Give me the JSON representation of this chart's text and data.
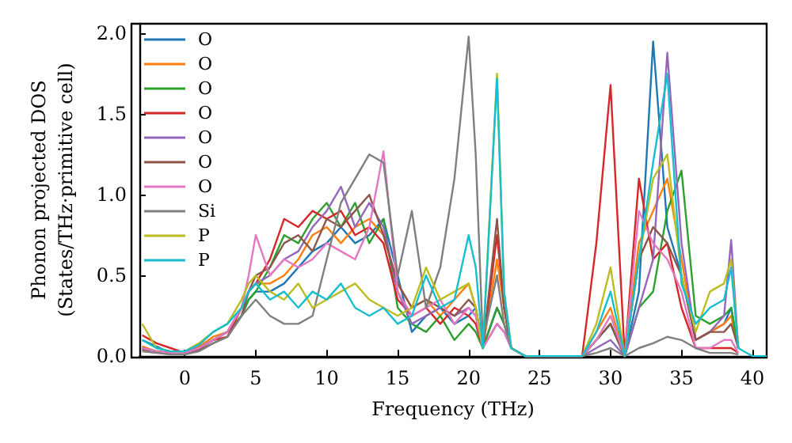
{
  "chart_data": {
    "type": "line",
    "xlabel": "Frequency (THz)",
    "ylabel": "Phonon projected DOS\n(States/THz·primitive cell)",
    "x": [
      -3,
      -2,
      -1,
      0,
      1,
      2,
      3,
      4,
      4.5,
      5,
      6,
      7,
      8,
      9,
      10,
      11,
      12,
      13,
      14,
      15,
      16,
      17,
      18,
      19,
      20,
      20.5,
      21,
      22,
      22.5,
      23,
      24,
      28,
      29,
      30,
      31,
      32,
      33,
      34,
      35,
      36,
      37,
      38,
      38.5,
      39
    ],
    "xlim": [
      -3.2,
      41
    ],
    "xticks": [
      0,
      5,
      10,
      15,
      20,
      25,
      30,
      35,
      40
    ],
    "ylim": [
      0,
      2.06
    ],
    "yticks": [
      {
        "value": 0,
        "label": "0.0"
      },
      {
        "value": 0.5,
        "label": "0.5"
      },
      {
        "value": 1,
        "label": "1.0"
      },
      {
        "value": 1.5,
        "label": "1.5"
      },
      {
        "value": 2,
        "label": "2.0"
      }
    ],
    "grid": false,
    "legend": "top left",
    "series": [
      {
        "name": "O",
        "color": "#1f77b4",
        "values": [
          0.1,
          0.06,
          0.02,
          0.02,
          0.05,
          0.1,
          0.15,
          0.25,
          0.35,
          0.4,
          0.4,
          0.45,
          0.55,
          0.65,
          0.7,
          0.8,
          0.7,
          0.75,
          0.85,
          0.5,
          0.15,
          0.25,
          0.3,
          0.2,
          0.25,
          0.3,
          0.05,
          0.3,
          0.2,
          0.05,
          0,
          0,
          0.1,
          0.2,
          0,
          0.4,
          1.95,
          0.8,
          0.5,
          0.1,
          0.15,
          0.2,
          0.3,
          0.05
        ]
      },
      {
        "name": "O",
        "color": "#ff7f0e",
        "values": [
          0.06,
          0.03,
          0.02,
          0.02,
          0.06,
          0.12,
          0.15,
          0.3,
          0.4,
          0.45,
          0.45,
          0.5,
          0.6,
          0.75,
          0.8,
          0.7,
          0.8,
          0.85,
          0.75,
          0.45,
          0.3,
          0.35,
          0.25,
          0.35,
          0.45,
          0.3,
          0.05,
          0.6,
          0.3,
          0.05,
          0,
          0,
          0.15,
          0.3,
          0,
          0.7,
          0.9,
          1.1,
          0.6,
          0.1,
          0.15,
          0.2,
          0.25,
          0.05
        ]
      },
      {
        "name": "O",
        "color": "#2ca02c",
        "values": [
          0.05,
          0.03,
          0.02,
          0.02,
          0.05,
          0.1,
          0.15,
          0.25,
          0.35,
          0.4,
          0.55,
          0.75,
          0.7,
          0.85,
          0.95,
          0.8,
          0.95,
          0.7,
          0.85,
          0.3,
          0.2,
          0.15,
          0.25,
          0.1,
          0.2,
          0.15,
          0.05,
          0.3,
          0.2,
          0.05,
          0,
          0,
          0.1,
          0.2,
          0,
          0.3,
          0.4,
          0.9,
          1.15,
          0.25,
          0.2,
          0.25,
          0.3,
          0.05
        ]
      },
      {
        "name": "O",
        "color": "#d62728",
        "values": [
          0.13,
          0.08,
          0.05,
          0.02,
          0.05,
          0.1,
          0.12,
          0.3,
          0.4,
          0.45,
          0.6,
          0.85,
          0.8,
          0.9,
          0.85,
          0.9,
          0.75,
          0.8,
          0.7,
          0.35,
          0.25,
          0.3,
          0.2,
          0.3,
          0.25,
          0.2,
          0.05,
          0.75,
          0.3,
          0.05,
          0,
          0,
          0.7,
          1.68,
          0,
          1.1,
          0.6,
          0.7,
          0.3,
          0.05,
          0.05,
          0.05,
          0.05,
          0.02
        ]
      },
      {
        "name": "O",
        "color": "#9467bd",
        "values": [
          0.05,
          0.03,
          0.02,
          0.02,
          0.05,
          0.1,
          0.15,
          0.3,
          0.4,
          0.45,
          0.5,
          0.6,
          0.65,
          0.8,
          0.9,
          1.05,
          0.8,
          0.95,
          0.8,
          0.4,
          0.2,
          0.25,
          0.3,
          0.25,
          0.3,
          0.25,
          0.05,
          0.2,
          0.15,
          0.05,
          0,
          0,
          0.05,
          0.1,
          0,
          0.3,
          0.6,
          1.88,
          0.7,
          0.1,
          0.15,
          0.25,
          0.72,
          0.05
        ]
      },
      {
        "name": "O",
        "color": "#8c564b",
        "values": [
          0.04,
          0.03,
          0.02,
          0.02,
          0.04,
          0.08,
          0.12,
          0.25,
          0.4,
          0.5,
          0.55,
          0.7,
          0.75,
          0.65,
          0.85,
          0.8,
          0.9,
          1.0,
          0.75,
          0.45,
          0.3,
          0.35,
          0.3,
          0.25,
          0.35,
          0.3,
          0.05,
          0.85,
          0.3,
          0.05,
          0,
          0,
          0.1,
          0.2,
          0,
          0.6,
          0.8,
          0.7,
          0.5,
          0.1,
          0.15,
          0.15,
          0.2,
          0.05
        ]
      },
      {
        "name": "O",
        "color": "#e377c2",
        "values": [
          0.05,
          0.03,
          0.02,
          0.02,
          0.05,
          0.1,
          0.15,
          0.3,
          0.5,
          0.75,
          0.5,
          0.6,
          0.55,
          0.6,
          0.7,
          0.65,
          0.6,
          0.8,
          1.27,
          0.4,
          0.25,
          0.3,
          0.35,
          0.2,
          0.3,
          0.25,
          0.05,
          0.2,
          0.15,
          0.05,
          0,
          0,
          0.1,
          0.25,
          0,
          0.9,
          0.7,
          0.6,
          0.4,
          0.05,
          0.05,
          0.1,
          0.1,
          0.02
        ]
      },
      {
        "name": "Si",
        "color": "#7f7f7f",
        "values": [
          0.03,
          0.02,
          0.01,
          0.01,
          0.03,
          0.08,
          0.12,
          0.25,
          0.3,
          0.35,
          0.25,
          0.2,
          0.2,
          0.25,
          0.6,
          0.95,
          1.1,
          1.25,
          1.2,
          0.5,
          0.9,
          0.3,
          0.55,
          1.1,
          1.98,
          1.25,
          0.1,
          0.5,
          0.2,
          0.05,
          0,
          0,
          0.02,
          0.05,
          0,
          0.05,
          0.08,
          0.12,
          0.1,
          0.05,
          0.02,
          0.02,
          0.02,
          0.01
        ]
      },
      {
        "name": "P",
        "color": "#bcbd22",
        "values": [
          0.2,
          0.05,
          0.03,
          0.03,
          0.08,
          0.15,
          0.2,
          0.35,
          0.45,
          0.5,
          0.4,
          0.35,
          0.45,
          0.3,
          0.35,
          0.4,
          0.45,
          0.35,
          0.3,
          0.25,
          0.3,
          0.55,
          0.35,
          0.4,
          0.45,
          0.3,
          0.05,
          1.75,
          0.4,
          0.05,
          0,
          0,
          0.2,
          0.55,
          0,
          0.6,
          1.1,
          1.25,
          0.5,
          0.15,
          0.4,
          0.45,
          0.6,
          0.05
        ]
      },
      {
        "name": "P",
        "color": "#17becf",
        "x": [
          -3,
          -2,
          -1,
          0,
          1,
          2,
          3,
          4,
          4.5,
          5,
          6,
          7,
          8,
          9,
          10,
          11,
          12,
          13,
          14,
          15,
          16,
          17,
          18,
          19,
          20,
          20.5,
          21,
          22,
          22.5,
          23,
          24,
          28,
          29,
          30,
          31,
          32,
          33,
          34,
          35,
          36,
          37,
          38,
          38.5,
          39,
          40,
          41
        ],
        "values": [
          0.1,
          0.05,
          0.03,
          0.03,
          0.07,
          0.15,
          0.2,
          0.3,
          0.4,
          0.45,
          0.35,
          0.4,
          0.3,
          0.4,
          0.35,
          0.45,
          0.3,
          0.25,
          0.3,
          0.2,
          0.25,
          0.5,
          0.3,
          0.35,
          0.75,
          0.55,
          0.05,
          1.72,
          0.4,
          0.05,
          0,
          0,
          0.15,
          0.4,
          0,
          0.6,
          1.2,
          1.75,
          0.45,
          0.2,
          0.3,
          0.35,
          0.55,
          0.05,
          0,
          0
        ]
      }
    ]
  }
}
